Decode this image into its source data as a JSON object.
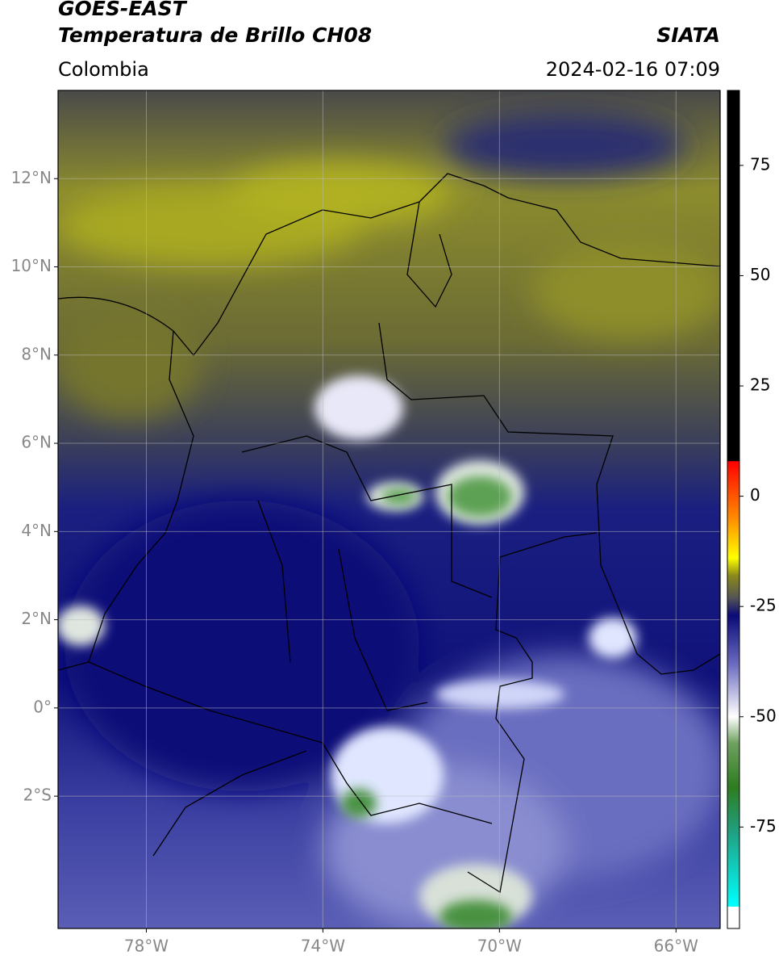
{
  "header": {
    "title": "GOES-EAST",
    "subtitle": "Temperatura de Brillo CH08",
    "source": "SIATA",
    "region": "Colombia",
    "datetime": "2024-02-16 07:09"
  },
  "map": {
    "xlim": [
      -80,
      -65
    ],
    "ylim": [
      -5,
      14
    ],
    "xticks": [
      {
        "value": -78,
        "label": "78°W"
      },
      {
        "value": -74,
        "label": "74°W"
      },
      {
        "value": -70,
        "label": "70°W"
      },
      {
        "value": -66,
        "label": "66°W"
      }
    ],
    "yticks": [
      {
        "value": 12,
        "label": "12°N"
      },
      {
        "value": 10,
        "label": "10°N"
      },
      {
        "value": 8,
        "label": "8°N"
      },
      {
        "value": 6,
        "label": "6°N"
      },
      {
        "value": 4,
        "label": "4°N"
      },
      {
        "value": 2,
        "label": "2°N"
      },
      {
        "value": 0,
        "label": "0°"
      },
      {
        "value": -2,
        "label": "2°S"
      }
    ],
    "grid": true
  },
  "colorbar": {
    "lim": [
      -98,
      92
    ],
    "ticks": [
      75,
      50,
      25,
      0,
      -25,
      -50,
      -75
    ],
    "stops": [
      {
        "value": 92,
        "color": "#000000"
      },
      {
        "value": 8,
        "color": "#000000"
      },
      {
        "value": 7.9,
        "color": "#ff0000"
      },
      {
        "value": -5,
        "color": "#ff8c00"
      },
      {
        "value": -14,
        "color": "#ffff00"
      },
      {
        "value": -18,
        "color": "#8a8a1a"
      },
      {
        "value": -23,
        "color": "#555555"
      },
      {
        "value": -27,
        "color": "#0a0a78"
      },
      {
        "value": -38,
        "color": "#6a6ac0"
      },
      {
        "value": -50,
        "color": "#ffffff"
      },
      {
        "value": -56,
        "color": "#6fa060"
      },
      {
        "value": -66,
        "color": "#2e7d20"
      },
      {
        "value": -76,
        "color": "#20a080"
      },
      {
        "value": -93,
        "color": "#00ffff"
      },
      {
        "value": -93.1,
        "color": "#ffffff"
      },
      {
        "value": -98,
        "color": "#ffffff"
      }
    ]
  }
}
